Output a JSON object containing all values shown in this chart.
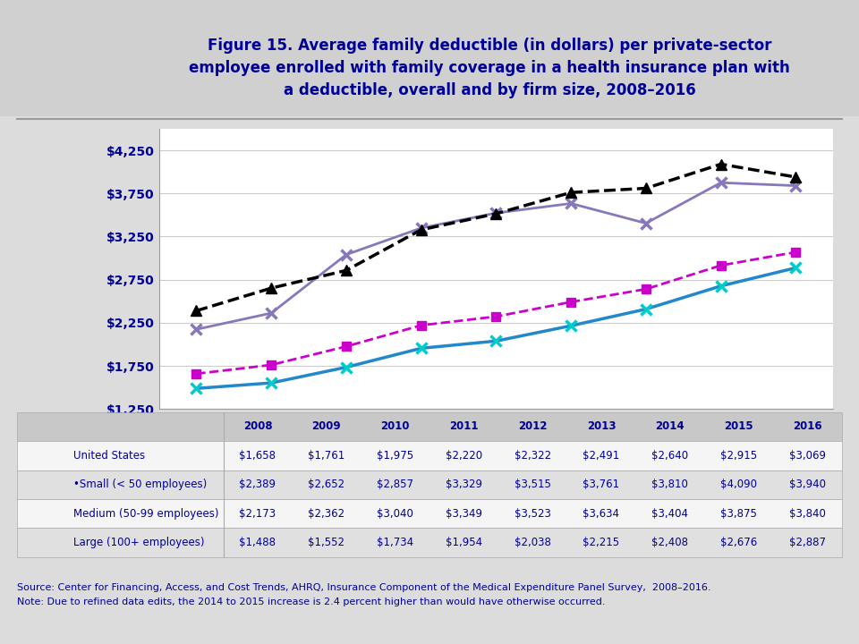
{
  "title": "Figure 15. Average family deductible (in dollars) per private-sector\nemployee enrolled with family coverage in a health insurance plan with\na deductible, overall and by firm size, 2008–2016",
  "years": [
    2008,
    2009,
    2010,
    2011,
    2012,
    2013,
    2014,
    2015,
    2016
  ],
  "us": [
    1658,
    1761,
    1975,
    2220,
    2322,
    2491,
    2640,
    2915,
    3069
  ],
  "small": [
    2389,
    2652,
    2857,
    3329,
    3515,
    3761,
    3810,
    4090,
    3940
  ],
  "medium": [
    2173,
    2362,
    3040,
    3349,
    3523,
    3634,
    3404,
    3875,
    3840
  ],
  "large": [
    1488,
    1552,
    1734,
    1954,
    2038,
    2215,
    2408,
    2676,
    2887
  ],
  "us_color": "#cc00cc",
  "small_color": "#000000",
  "medium_color": "#8877bb",
  "large_color": "#2288cc",
  "large_marker_color": "#00cccc",
  "ylim_min": 1250,
  "ylim_max": 4500,
  "yticks": [
    1250,
    1750,
    2250,
    2750,
    3250,
    3750,
    4250
  ],
  "bg_color": "#dcdcdc",
  "source_text": "Source: Center for Financing, Access, and Cost Trends, AHRQ, Insurance Component of the Medical Expenditure Panel Survey,  2008–2016.",
  "note_text": "Note: Due to refined data edits, the 2014 to 2015 increase is 2.4 percent higher than would have otherwise occurred.",
  "legend_labels": [
    "United States",
    "•Small (< 50 employees)",
    "Medium (50-99 employees)",
    "Large (100+ employees)"
  ],
  "table_years": [
    "2008",
    "2009",
    "2010",
    "2011",
    "2012",
    "2013",
    "2014",
    "2015",
    "2016"
  ],
  "table_us": [
    "$1,658",
    "$1,761",
    "$1,975",
    "$2,220",
    "$2,322",
    "$2,491",
    "$2,640",
    "$2,915",
    "$3,069"
  ],
  "table_small": [
    "$2,389",
    "$2,652",
    "$2,857",
    "$3,329",
    "$3,515",
    "$3,761",
    "$3,810",
    "$4,090",
    "$3,940"
  ],
  "table_medium": [
    "$2,173",
    "$2,362",
    "$3,040",
    "$3,349",
    "$3,523",
    "$3,634",
    "$3,404",
    "$3,875",
    "$3,840"
  ],
  "table_large": [
    "$1,488",
    "$1,552",
    "$1,734",
    "$1,954",
    "$2,038",
    "$2,215",
    "$2,408",
    "$2,676",
    "$2,887"
  ]
}
